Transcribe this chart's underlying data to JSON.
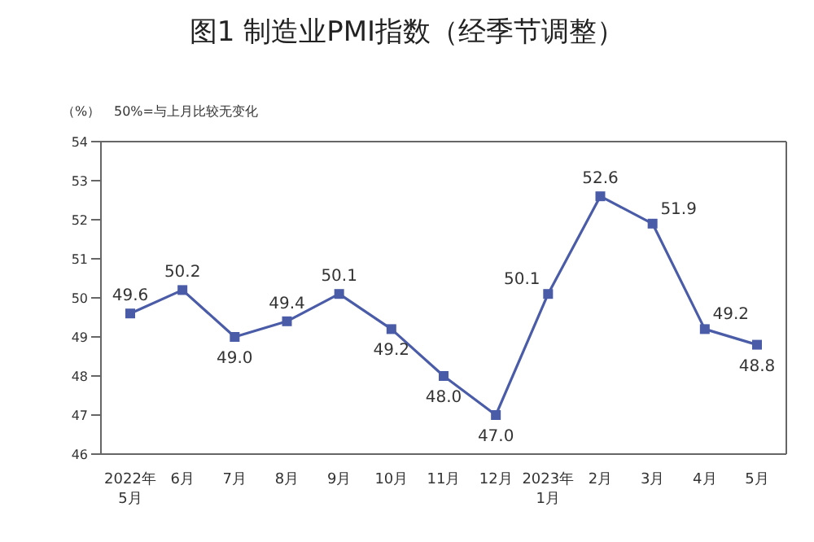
{
  "chart_data": {
    "type": "line",
    "title": "图1 制造业PMI指数（经季节调整）",
    "ylabel": "（%）",
    "annotations": [
      "50%=与上月比较无变化"
    ],
    "categories": [
      "2022年\n5月",
      "6月",
      "7月",
      "8月",
      "9月",
      "10月",
      "11月",
      "12月",
      "2023年\n1月",
      "2月",
      "3月",
      "4月",
      "5月"
    ],
    "series": [
      {
        "color": "#4a5ca8",
        "values": [
          49.6,
          50.2,
          49.0,
          49.4,
          50.1,
          49.2,
          48.0,
          47.0,
          50.1,
          52.6,
          51.9,
          49.2,
          48.8
        ],
        "value_labels": [
          "49.6",
          "50.2",
          "49.0",
          "49.4",
          "50.1",
          "49.2",
          "48.0",
          "47.0",
          "50.1",
          "52.6",
          "51.9",
          "49.2",
          "48.8"
        ]
      }
    ],
    "ylim": [
      46,
      54
    ],
    "yticks": [
      46,
      47,
      48,
      49,
      50,
      51,
      52,
      53,
      54
    ],
    "marker": "square",
    "line_style": "solid"
  }
}
